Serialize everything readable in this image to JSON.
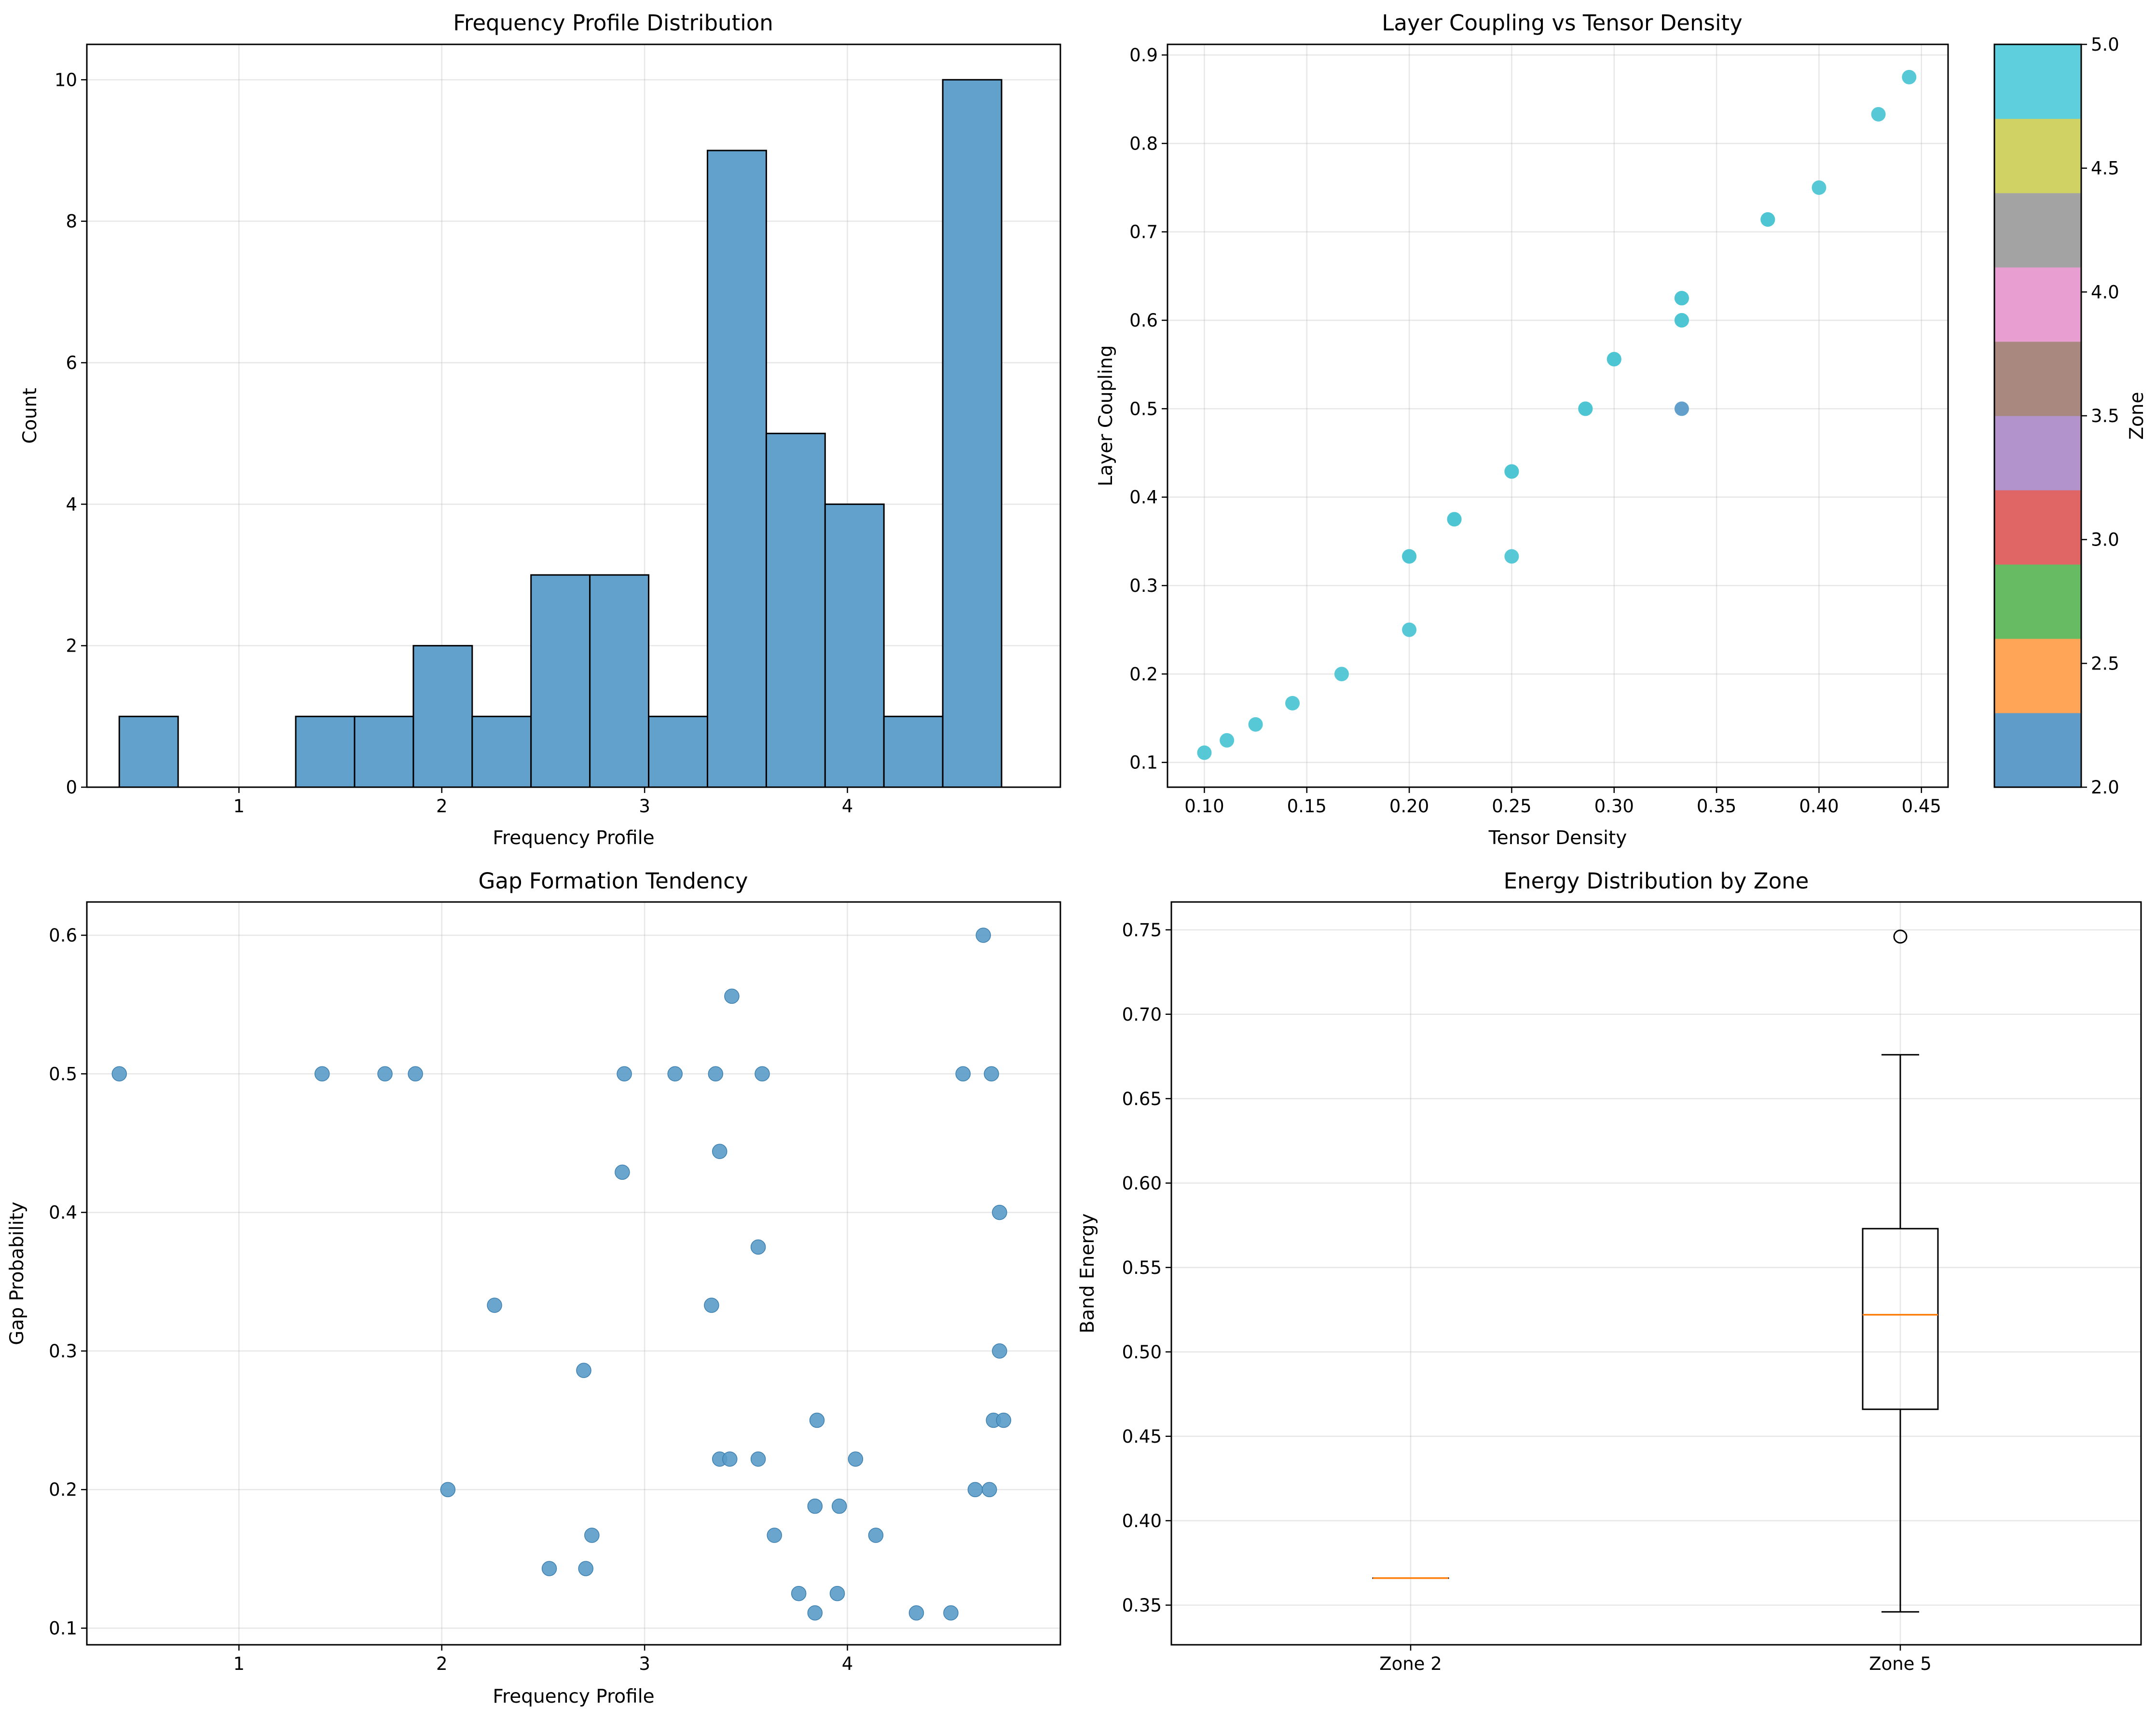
{
  "colors": {
    "bar_fill": "#62a1cc",
    "bar_edge": "#000000",
    "point_blue": "#5a9bc8",
    "point_cyan": "#4ec5d3",
    "median": "#ff7f0e",
    "colorbar": [
      "#5f9cc9",
      "#fea557",
      "#67bb63",
      "#e06565",
      "#b293cc",
      "#a98880",
      "#e99ed2",
      "#a3a3a3",
      "#d1d264",
      "#5ecfdc"
    ]
  },
  "chart_data": [
    {
      "id": "hist",
      "type": "bar",
      "title": "Frequency Profile Distribution",
      "xlabel": "Frequency Profile",
      "ylabel": "Count",
      "xlim": [
        0.25,
        5.05
      ],
      "ylim": [
        0,
        10.5
      ],
      "xticks": [
        1,
        2,
        3,
        4
      ],
      "yticks": [
        0,
        2,
        4,
        6,
        8,
        10
      ],
      "bin_edges": [
        0.41,
        0.7,
        0.99,
        1.28,
        1.57,
        1.86,
        2.15,
        2.44,
        2.73,
        3.02,
        3.31,
        3.6,
        3.89,
        4.18,
        4.47,
        4.76
      ],
      "values": [
        1,
        0,
        0,
        1,
        1,
        2,
        1,
        3,
        3,
        1,
        9,
        5,
        4,
        1,
        10
      ]
    },
    {
      "id": "scatter1",
      "type": "scatter",
      "title": "Layer Coupling vs Tensor Density",
      "xlabel": "Tensor Density",
      "ylabel": "Layer Coupling",
      "xlim": [
        0.082,
        0.463
      ],
      "ylim": [
        0.072,
        0.912
      ],
      "xticks": [
        0.1,
        0.15,
        0.2,
        0.25,
        0.3,
        0.35,
        0.4,
        0.45
      ],
      "yticks": [
        0.1,
        0.2,
        0.3,
        0.4,
        0.5,
        0.6,
        0.7,
        0.8,
        0.9
      ],
      "points": [
        {
          "x": 0.1,
          "y": 0.111,
          "zone": 5
        },
        {
          "x": 0.111,
          "y": 0.125,
          "zone": 5
        },
        {
          "x": 0.125,
          "y": 0.143,
          "zone": 5
        },
        {
          "x": 0.143,
          "y": 0.167,
          "zone": 5
        },
        {
          "x": 0.167,
          "y": 0.2,
          "zone": 5
        },
        {
          "x": 0.2,
          "y": 0.25,
          "zone": 5
        },
        {
          "x": 0.2,
          "y": 0.333,
          "zone": 5
        },
        {
          "x": 0.2,
          "y": 0.333,
          "zone": 5
        },
        {
          "x": 0.222,
          "y": 0.375,
          "zone": 5
        },
        {
          "x": 0.222,
          "y": 0.375,
          "zone": 5
        },
        {
          "x": 0.25,
          "y": 0.333,
          "zone": 5
        },
        {
          "x": 0.25,
          "y": 0.429,
          "zone": 5
        },
        {
          "x": 0.25,
          "y": 0.429,
          "zone": 5
        },
        {
          "x": 0.286,
          "y": 0.5,
          "zone": 5
        },
        {
          "x": 0.286,
          "y": 0.5,
          "zone": 5
        },
        {
          "x": 0.3,
          "y": 0.556,
          "zone": 5
        },
        {
          "x": 0.3,
          "y": 0.556,
          "zone": 5
        },
        {
          "x": 0.333,
          "y": 0.5,
          "zone": 2
        },
        {
          "x": 0.333,
          "y": 0.6,
          "zone": 5
        },
        {
          "x": 0.333,
          "y": 0.6,
          "zone": 5
        },
        {
          "x": 0.333,
          "y": 0.625,
          "zone": 5
        },
        {
          "x": 0.333,
          "y": 0.625,
          "zone": 5
        },
        {
          "x": 0.375,
          "y": 0.714,
          "zone": 5
        },
        {
          "x": 0.375,
          "y": 0.714,
          "zone": 5
        },
        {
          "x": 0.4,
          "y": 0.75,
          "zone": 5
        },
        {
          "x": 0.429,
          "y": 0.833,
          "zone": 5
        },
        {
          "x": 0.444,
          "y": 0.875,
          "zone": 5
        }
      ],
      "colorbar": {
        "label": "Zone",
        "range": [
          2.0,
          5.0
        ],
        "ticks": [
          2.0,
          2.5,
          3.0,
          3.5,
          4.0,
          4.5,
          5.0
        ],
        "tick_labels": [
          "2.0",
          "2.5",
          "3.0",
          "3.5",
          "4.0",
          "4.5",
          "5.0"
        ]
      }
    },
    {
      "id": "scatter2",
      "type": "scatter",
      "title": "Gap Formation Tendency",
      "xlabel": "Frequency Profile",
      "ylabel": "Gap Probability",
      "xlim": [
        0.25,
        5.05
      ],
      "ylim": [
        0.088,
        0.624
      ],
      "xticks": [
        1,
        2,
        3,
        4
      ],
      "yticks": [
        0.1,
        0.2,
        0.3,
        0.4,
        0.5,
        0.6
      ],
      "points": [
        {
          "x": 0.41,
          "y": 0.5
        },
        {
          "x": 1.41,
          "y": 0.5
        },
        {
          "x": 1.72,
          "y": 0.5
        },
        {
          "x": 1.87,
          "y": 0.5
        },
        {
          "x": 2.9,
          "y": 0.5
        },
        {
          "x": 3.15,
          "y": 0.5
        },
        {
          "x": 3.35,
          "y": 0.5
        },
        {
          "x": 3.58,
          "y": 0.5
        },
        {
          "x": 4.57,
          "y": 0.5
        },
        {
          "x": 4.71,
          "y": 0.5
        },
        {
          "x": 4.67,
          "y": 0.6
        },
        {
          "x": 3.43,
          "y": 0.556
        },
        {
          "x": 3.37,
          "y": 0.444
        },
        {
          "x": 2.89,
          "y": 0.429
        },
        {
          "x": 4.75,
          "y": 0.4
        },
        {
          "x": 3.56,
          "y": 0.375
        },
        {
          "x": 2.26,
          "y": 0.333
        },
        {
          "x": 3.33,
          "y": 0.333
        },
        {
          "x": 4.75,
          "y": 0.3
        },
        {
          "x": 2.7,
          "y": 0.286
        },
        {
          "x": 3.85,
          "y": 0.25
        },
        {
          "x": 4.72,
          "y": 0.25
        },
        {
          "x": 4.77,
          "y": 0.25
        },
        {
          "x": 3.37,
          "y": 0.222
        },
        {
          "x": 3.42,
          "y": 0.222
        },
        {
          "x": 3.56,
          "y": 0.222
        },
        {
          "x": 4.04,
          "y": 0.222
        },
        {
          "x": 2.03,
          "y": 0.2
        },
        {
          "x": 4.63,
          "y": 0.2
        },
        {
          "x": 4.7,
          "y": 0.2
        },
        {
          "x": 3.84,
          "y": 0.188
        },
        {
          "x": 3.96,
          "y": 0.188
        },
        {
          "x": 2.74,
          "y": 0.167
        },
        {
          "x": 3.64,
          "y": 0.167
        },
        {
          "x": 4.14,
          "y": 0.167
        },
        {
          "x": 2.53,
          "y": 0.143
        },
        {
          "x": 2.71,
          "y": 0.143
        },
        {
          "x": 3.76,
          "y": 0.125
        },
        {
          "x": 3.95,
          "y": 0.125
        },
        {
          "x": 3.84,
          "y": 0.111
        },
        {
          "x": 4.34,
          "y": 0.111
        },
        {
          "x": 4.51,
          "y": 0.111
        }
      ]
    },
    {
      "id": "boxplot",
      "type": "box",
      "title": "Energy Distribution by Zone",
      "xlabel": "",
      "ylabel": "Band Energy",
      "ylim": [
        0.3265,
        0.7665
      ],
      "yticks": [
        0.35,
        0.4,
        0.45,
        0.5,
        0.55,
        0.6,
        0.65,
        0.7,
        0.75
      ],
      "ytick_labels": [
        "0.35",
        "0.40",
        "0.45",
        "0.50",
        "0.55",
        "0.60",
        "0.65",
        "0.70",
        "0.75"
      ],
      "categories": [
        "Zone 2",
        "Zone 5"
      ],
      "boxes": [
        {
          "min": 0.366,
          "q1": 0.366,
          "median": 0.366,
          "q3": 0.366,
          "max": 0.366,
          "outliers": []
        },
        {
          "min": 0.346,
          "q1": 0.466,
          "median": 0.522,
          "q3": 0.573,
          "max": 0.676,
          "outliers": [
            0.746
          ]
        }
      ]
    }
  ]
}
